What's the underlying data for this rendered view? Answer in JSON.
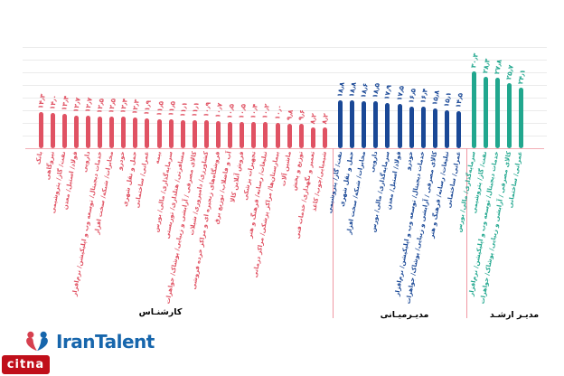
{
  "page": {
    "background": "#ffffff"
  },
  "chart_data": {
    "type": "bar",
    "title": "",
    "ylim": [
      0,
      40
    ],
    "grid_step": 5,
    "grid": true,
    "value_labels": "persian-digits-one-decimal-rotated",
    "category_labels": "rotated-vertical",
    "groups": [
      {
        "name": "کارشنـاس",
        "color": "#e05263",
        "items": [
          {
            "label": "بانک",
            "value": 14.3
          },
          {
            "label": "نیروگاهی",
            "value": 14.0
          },
          {
            "label": "نفت/ گاز/ پتروشیمی",
            "value": 13.4
          },
          {
            "label": "فولاد/ استیل/ معدن",
            "value": 12.7
          },
          {
            "label": "دارویی",
            "value": 12.7
          },
          {
            "label": "خدمات دیجیتال/ توسعه وب و اپلیکیشن/ نرم‌افزار",
            "value": 12.5
          },
          {
            "label": "مخابرات/ شبکه/ سخت افزار",
            "value": 12.5
          },
          {
            "label": "خودرو",
            "value": 12.4
          },
          {
            "label": "حمل و نقل شهری",
            "value": 12.3
          },
          {
            "label": "عمرانی/ ساختمانی",
            "value": 11.9
          },
          {
            "label": "بیمه",
            "value": 11.5
          },
          {
            "label": "سرمایه‌گذاری/ مالی/ بورس",
            "value": 11.5
          },
          {
            "label": "مسافرتی/ هتلداری/ توریستی",
            "value": 11.1
          },
          {
            "label": "کالای مصرفی / آرایشی و زیبایی/ پوشاک/ جواهرات",
            "value": 11.1
          },
          {
            "label": "کشاورزی/ دامپروری/ شیلات",
            "value": 10.9
          },
          {
            "label": "فروشگاه‌های زنجیره ای و مراکز خرده فروشی",
            "value": 10.7
          },
          {
            "label": "آب و فاضلاب/ توزیع برق",
            "value": 10.5
          },
          {
            "label": "فروش آنلاین کالا",
            "value": 10.5
          },
          {
            "label": "تجهیزات پزشکی",
            "value": 10.4
          },
          {
            "label": "تبلیغات/ رسانه/ فرهنگ و هنر",
            "value": 10.2
          },
          {
            "label": "بیمارستان‌ها/ مراکز پزشکی/ مراکز درمانی",
            "value": 10.0
          },
          {
            "label": "ماشین آلات",
            "value": 9.8
          },
          {
            "label": "توزیع و پخش",
            "value": 9.6
          },
          {
            "label": "تعمیر و نگهداری/ خدمات فنی",
            "value": 8.2
          },
          {
            "label": "شیمیایی/چوب/ کاغذ",
            "value": 8.2
          }
        ]
      },
      {
        "name": "مدیـرمیـانی",
        "color": "#1a4896",
        "items": [
          {
            "label": "نفت/ گاز/ پتروشیمی",
            "value": 18.8
          },
          {
            "label": "حمل و نقل شهری",
            "value": 18.8
          },
          {
            "label": "مخابرات/ شبکه/ سخت افزار",
            "value": 18.6
          },
          {
            "label": "دارویی",
            "value": 18.5
          },
          {
            "label": "سرمایه‌گذاری/ مالی/ بورس",
            "value": 17.9
          },
          {
            "label": "فولاد/ استیل/ معدن",
            "value": 17.5
          },
          {
            "label": "خودرو",
            "value": 16.5
          },
          {
            "label": "خدمات دیجیتال/ توسعه وب و اپلیکیشن/ نرم‌افزار",
            "value": 16.4
          },
          {
            "label": "کالای مصرفی / آرایشی و زیبایی/ پوشاک/ جواهرات",
            "value": 15.8
          },
          {
            "label": "تبلیغات/ رسانه/ فرهنگ و هنر",
            "value": 15.1
          },
          {
            "label": "عمرانی/ ساختمانی",
            "value": 14.5
          }
        ]
      },
      {
        "name": "مدیـر ارشـد",
        "color": "#21a78e",
        "items": [
          {
            "label": "سرمایه‌گذاری/ مالی/ بورس",
            "value": 30.3
          },
          {
            "label": "نفت/ گاز/ پتروشیمی",
            "value": 28.3
          },
          {
            "label": "خدمات دیجیتال/ توسعه وب و اپلیکیشن/ نرم‌افزار",
            "value": 27.8
          },
          {
            "label": "کالای مصرفی / آرایشی و زیبایی/ پوشاک/ جواهرات",
            "value": 25.7
          },
          {
            "label": "عمرانی/ ساختمانی",
            "value": 24.1
          }
        ]
      }
    ]
  },
  "footer": {
    "irantalent_logo_text": "IranTalent",
    "citna_logo_text": "citna"
  },
  "colors": {
    "expert_red": "#e05263",
    "middle_manager_blue": "#1a4896",
    "senior_manager_green": "#21a78e",
    "axis_pink": "#f2aeb5",
    "gridline_gray": "#ebebeb",
    "irantalent_blue": "#1766ac",
    "irantalent_red": "#d6404f",
    "citna_red": "#c00f1a"
  }
}
